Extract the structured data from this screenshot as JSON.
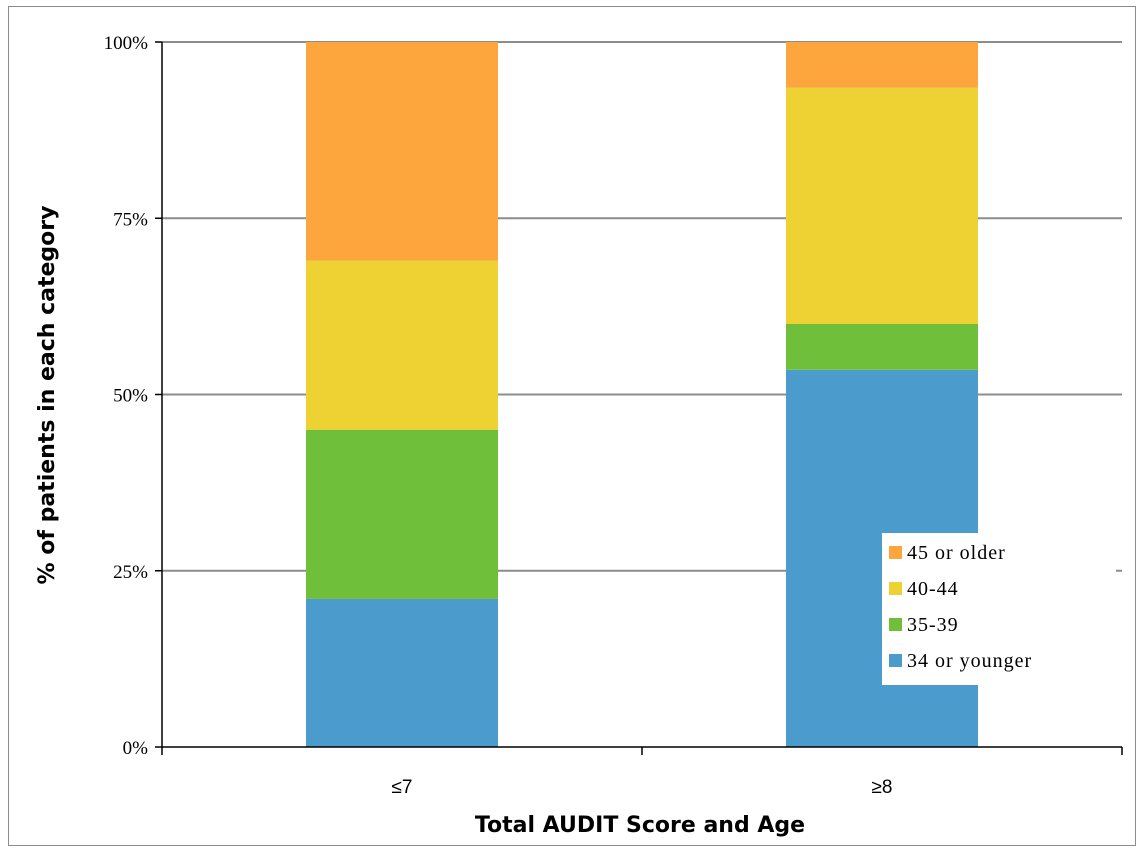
{
  "chart_data": {
    "type": "bar",
    "stacked": true,
    "percent_stacked": true,
    "categories": [
      "≤7",
      "≥8"
    ],
    "series": [
      {
        "name": "34 or younger",
        "color": "#4b9bcc",
        "values": [
          21,
          53.5
        ]
      },
      {
        "name": "35-39",
        "color": "#70bf3b",
        "values": [
          24,
          6.5
        ]
      },
      {
        "name": "40-44",
        "color": "#eed233",
        "values": [
          24,
          33.5
        ]
      },
      {
        "name": "45 or older",
        "color": "#fca63d",
        "values": [
          31,
          6.5
        ]
      }
    ],
    "ylim": [
      0,
      100
    ],
    "yticks": [
      "0%",
      "25%",
      "50%",
      "75%",
      "100%"
    ],
    "ytick_values": [
      0,
      25,
      50,
      75,
      100
    ],
    "xlabel": "Total AUDIT Score and Age",
    "ylabel": "% of patients in each category",
    "legend_position": "bottom-right inside",
    "legend_order": [
      "45 or older",
      "40-44",
      "35-39",
      "34 or younger"
    ],
    "grid": true,
    "gridline_color": "#8c8c8c"
  }
}
